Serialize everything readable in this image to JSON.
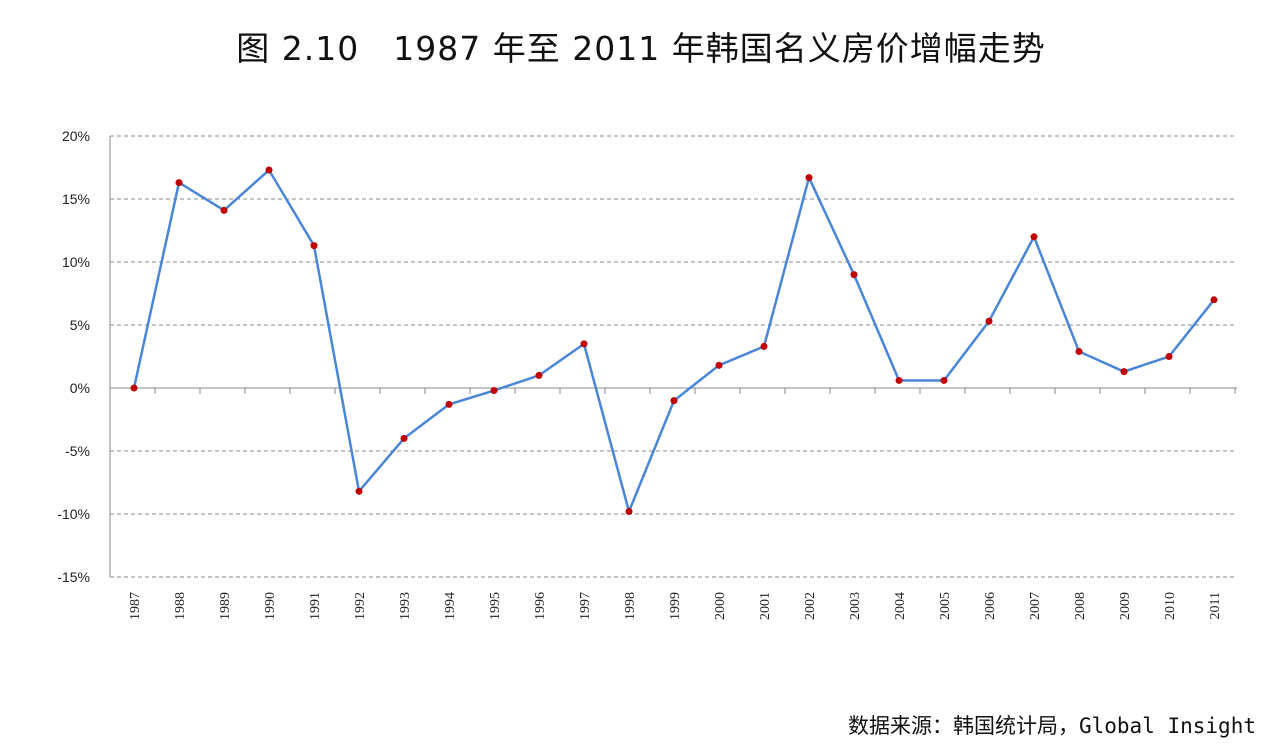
{
  "chart_data": {
    "type": "line",
    "title": "图 2.10　1987 年至 2011 年韩国名义房价增幅走势",
    "xlabel": "",
    "ylabel": "",
    "categories": [
      "1987",
      "1988",
      "1989",
      "1990",
      "1991",
      "1992",
      "1993",
      "1994",
      "1995",
      "1996",
      "1997",
      "1998",
      "1999",
      "2000",
      "2001",
      "2002",
      "2003",
      "2004",
      "2005",
      "2006",
      "2007",
      "2008",
      "2009",
      "2010",
      "2011"
    ],
    "values": [
      0.0,
      16.3,
      14.1,
      17.3,
      11.3,
      -8.2,
      -4.0,
      -1.3,
      -0.2,
      1.0,
      3.5,
      -9.8,
      -1.0,
      1.8,
      3.3,
      16.7,
      9.0,
      0.6,
      0.6,
      5.3,
      12.0,
      2.9,
      1.3,
      2.5,
      7.0
    ],
    "ylim": [
      -15,
      20
    ],
    "yticks": [
      20,
      15,
      10,
      5,
      0,
      -5,
      -10,
      -15
    ],
    "ytick_labels": [
      "20%",
      "15%",
      "10%",
      "5%",
      "0%",
      "-5%",
      "-10%",
      "-15%"
    ],
    "grid": "horizontal dashed",
    "legend": "none",
    "colors": {
      "line": "#4a86d8",
      "marker": "#c00000"
    },
    "source": "数据来源：韩国统计局，Global Insight"
  }
}
